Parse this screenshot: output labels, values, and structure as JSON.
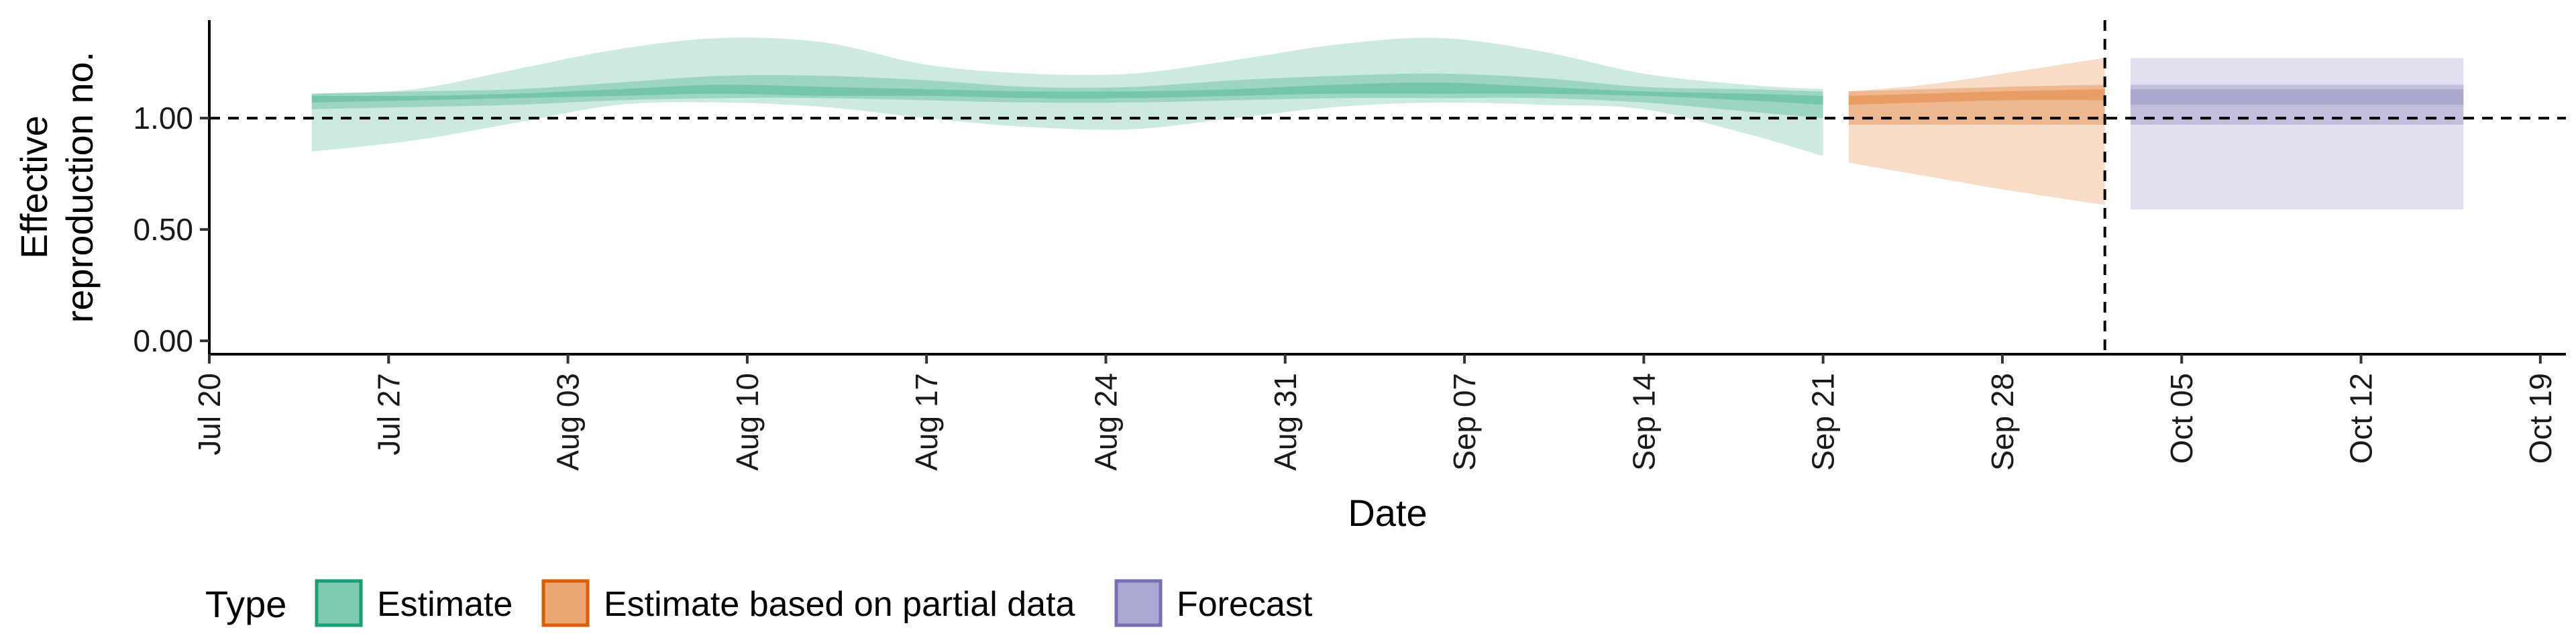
{
  "chart_data": {
    "type": "area",
    "xlabel": "Date",
    "ylabel_lines": [
      "Effective",
      "reproduction no."
    ],
    "x_domain": [
      "2020-07-20",
      "2020-10-20"
    ],
    "y_domain": [
      -0.06,
      1.44
    ],
    "y_ticks": [
      0.0,
      0.5,
      1.0
    ],
    "y_tick_labels": [
      "0.00",
      "0.50",
      "1.00"
    ],
    "x_ticks": [
      "2020-07-20",
      "2020-07-27",
      "2020-08-03",
      "2020-08-10",
      "2020-08-17",
      "2020-08-24",
      "2020-08-31",
      "2020-09-07",
      "2020-09-14",
      "2020-09-21",
      "2020-09-28",
      "2020-10-05",
      "2020-10-12",
      "2020-10-19"
    ],
    "x_tick_labels": [
      "Jul 20",
      "Jul 27",
      "Aug 03",
      "Aug 10",
      "Aug 17",
      "Aug 24",
      "Aug 31",
      "Sep 07",
      "Sep 14",
      "Sep 21",
      "Sep 28",
      "Oct 05",
      "Oct 12",
      "Oct 19"
    ],
    "hline": 1.0,
    "vline": "2020-10-02",
    "grid": false,
    "legend": {
      "title": "Type",
      "position": "bottom",
      "items": [
        {
          "label": "Estimate",
          "fill": "#7fcab1",
          "border": "#1b9e77"
        },
        {
          "label": "Estimate based on partial data",
          "fill": "#eda773",
          "border": "#d95f02"
        },
        {
          "label": "Forecast",
          "fill": "#aba9d4",
          "border": "#7570b3"
        }
      ]
    },
    "series": [
      {
        "name": "Estimate",
        "color": "#1b9e77",
        "x": [
          "2020-07-24",
          "2020-07-28",
          "2020-08-01",
          "2020-08-05",
          "2020-08-09",
          "2020-08-13",
          "2020-08-17",
          "2020-08-21",
          "2020-08-25",
          "2020-08-29",
          "2020-09-02",
          "2020-09-06",
          "2020-09-10",
          "2020-09-14",
          "2020-09-18",
          "2020-09-21"
        ],
        "median": [
          1.09,
          1.09,
          1.1,
          1.12,
          1.13,
          1.12,
          1.11,
          1.11,
          1.11,
          1.12,
          1.13,
          1.14,
          1.12,
          1.11,
          1.1,
          1.09
        ],
        "lower90": [
          0.85,
          0.9,
          0.98,
          1.06,
          1.07,
          1.05,
          1.0,
          0.96,
          0.95,
          1.0,
          1.05,
          1.07,
          1.06,
          1.04,
          0.93,
          0.83
        ],
        "upper90": [
          1.11,
          1.13,
          1.22,
          1.31,
          1.36,
          1.34,
          1.24,
          1.2,
          1.2,
          1.26,
          1.33,
          1.36,
          1.3,
          1.2,
          1.15,
          1.13
        ],
        "lower50": [
          1.04,
          1.05,
          1.06,
          1.08,
          1.09,
          1.09,
          1.08,
          1.07,
          1.07,
          1.08,
          1.09,
          1.09,
          1.09,
          1.07,
          1.03,
          1.0
        ],
        "upper50": [
          1.11,
          1.12,
          1.13,
          1.16,
          1.19,
          1.19,
          1.17,
          1.14,
          1.14,
          1.17,
          1.19,
          1.2,
          1.18,
          1.14,
          1.13,
          1.12
        ],
        "lower20": [
          1.07,
          1.08,
          1.09,
          1.1,
          1.11,
          1.1,
          1.1,
          1.09,
          1.09,
          1.1,
          1.11,
          1.11,
          1.11,
          1.1,
          1.08,
          1.06
        ],
        "upper20": [
          1.1,
          1.1,
          1.11,
          1.13,
          1.15,
          1.14,
          1.13,
          1.12,
          1.12,
          1.13,
          1.15,
          1.16,
          1.14,
          1.12,
          1.11,
          1.1
        ]
      },
      {
        "name": "Estimate based on partial data",
        "color": "#d95f02",
        "x": [
          "2020-09-22",
          "2020-09-25",
          "2020-09-28",
          "2020-10-02"
        ],
        "median": [
          1.09,
          1.1,
          1.11,
          1.11
        ],
        "lower90": [
          0.8,
          0.74,
          0.68,
          0.61
        ],
        "upper90": [
          1.12,
          1.15,
          1.2,
          1.27
        ],
        "lower50": [
          0.97,
          0.97,
          0.97,
          0.97
        ],
        "upper50": [
          1.12,
          1.13,
          1.14,
          1.15
        ],
        "lower20": [
          1.06,
          1.07,
          1.08,
          1.08
        ],
        "upper20": [
          1.1,
          1.11,
          1.12,
          1.13
        ]
      },
      {
        "name": "Forecast",
        "color": "#7570b3",
        "x": [
          "2020-10-03",
          "2020-10-16"
        ],
        "median": [
          1.1,
          1.1
        ],
        "lower90": [
          0.59,
          0.59
        ],
        "upper90": [
          1.27,
          1.27
        ],
        "lower50": [
          0.97,
          0.97
        ],
        "upper50": [
          1.15,
          1.15
        ],
        "lower20": [
          1.06,
          1.06
        ],
        "upper20": [
          1.13,
          1.13
        ]
      }
    ]
  }
}
